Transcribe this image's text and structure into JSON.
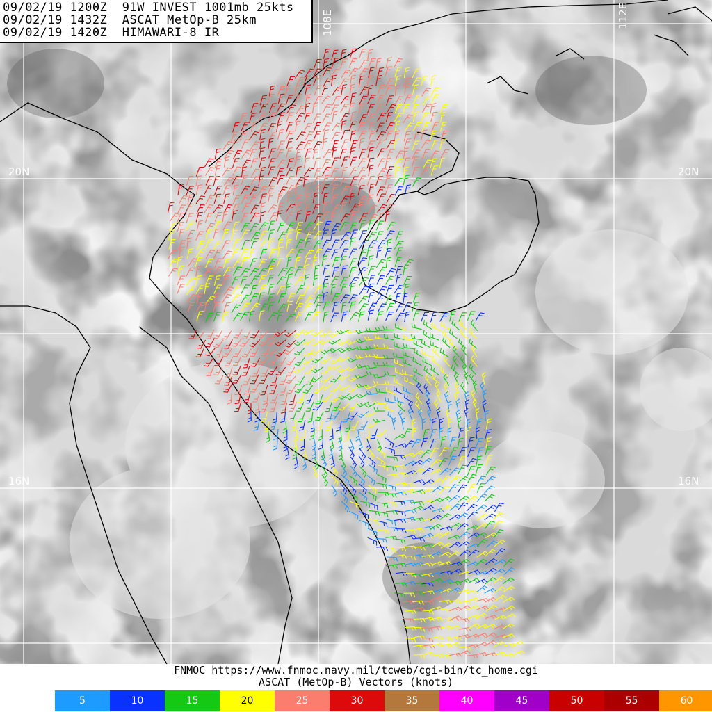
{
  "header": {
    "line1": "09/02/19 1200Z  91W INVEST 1001mb 25kts",
    "line2": "09/02/19 1432Z  ASCAT MetOp-B 25km",
    "line3": "09/02/19 1420Z  HIMAWARI-8 IR"
  },
  "grid_labels": {
    "lat_20_left": "20N",
    "lat_20_right": "20N",
    "lat_16_left": "16N",
    "lat_16_right": "16N",
    "lon_108": "108E",
    "lon_112": "112E"
  },
  "footer": {
    "source_line": "FNMOC https://www.fnmoc.navy.mil/tcweb/cgi-bin/tc_home.cgi",
    "legend_title": "ASCAT (MetOp-B) Vectors (knots)"
  },
  "legend": [
    {
      "label": "5",
      "color": "#1e9bff"
    },
    {
      "label": "10",
      "color": "#0a32ff"
    },
    {
      "label": "15",
      "color": "#14c814"
    },
    {
      "label": "20",
      "color": "#ffff00"
    },
    {
      "label": "25",
      "color": "#fa7d6e"
    },
    {
      "label": "30",
      "color": "#dc0a0a"
    },
    {
      "label": "35",
      "color": "#b4783c"
    },
    {
      "label": "40",
      "color": "#ff00ff"
    },
    {
      "label": "45",
      "color": "#a000c8"
    },
    {
      "label": "50",
      "color": "#c80000"
    },
    {
      "label": "55",
      "color": "#aa0000"
    },
    {
      "label": "60",
      "color": "#ff9600"
    }
  ]
}
